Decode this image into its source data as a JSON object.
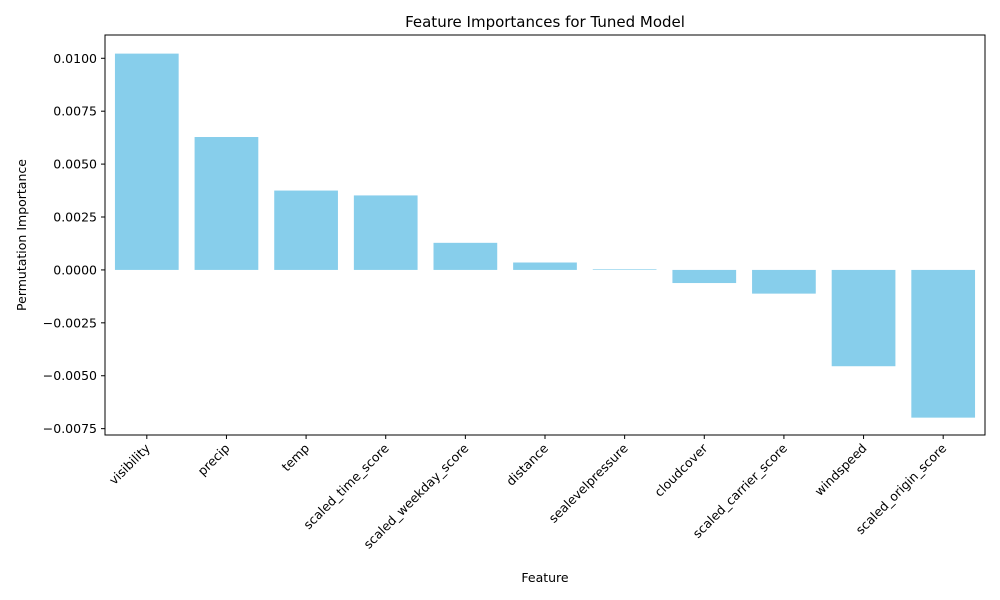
{
  "chart_data": {
    "type": "bar",
    "title": "Feature Importances for Tuned Model",
    "xlabel": "Feature",
    "ylabel": "Permutation Importance",
    "categories": [
      "visibility",
      "precip",
      "temp",
      "scaled_time_score",
      "scaled_weekday_score",
      "distance",
      "sealevelpressure",
      "cloudcover",
      "scaled_carrier_score",
      "windspeed",
      "scaled_origin_score"
    ],
    "values": [
      0.01022,
      0.00628,
      0.00375,
      0.00352,
      0.00128,
      0.00035,
      3e-05,
      -0.00062,
      -0.00112,
      -0.00455,
      -0.00698
    ],
    "ylim": [
      -0.0078,
      0.0111
    ],
    "yticks": [
      -0.0075,
      -0.005,
      -0.0025,
      0.0,
      0.0025,
      0.005,
      0.0075,
      0.01
    ],
    "ytick_labels": [
      "−0.0075",
      "−0.0050",
      "−0.0025",
      "0.0000",
      "0.0025",
      "0.0050",
      "0.0075",
      "0.0100"
    ],
    "bar_color": "#87ceeb",
    "grid": false,
    "legend": "none"
  }
}
